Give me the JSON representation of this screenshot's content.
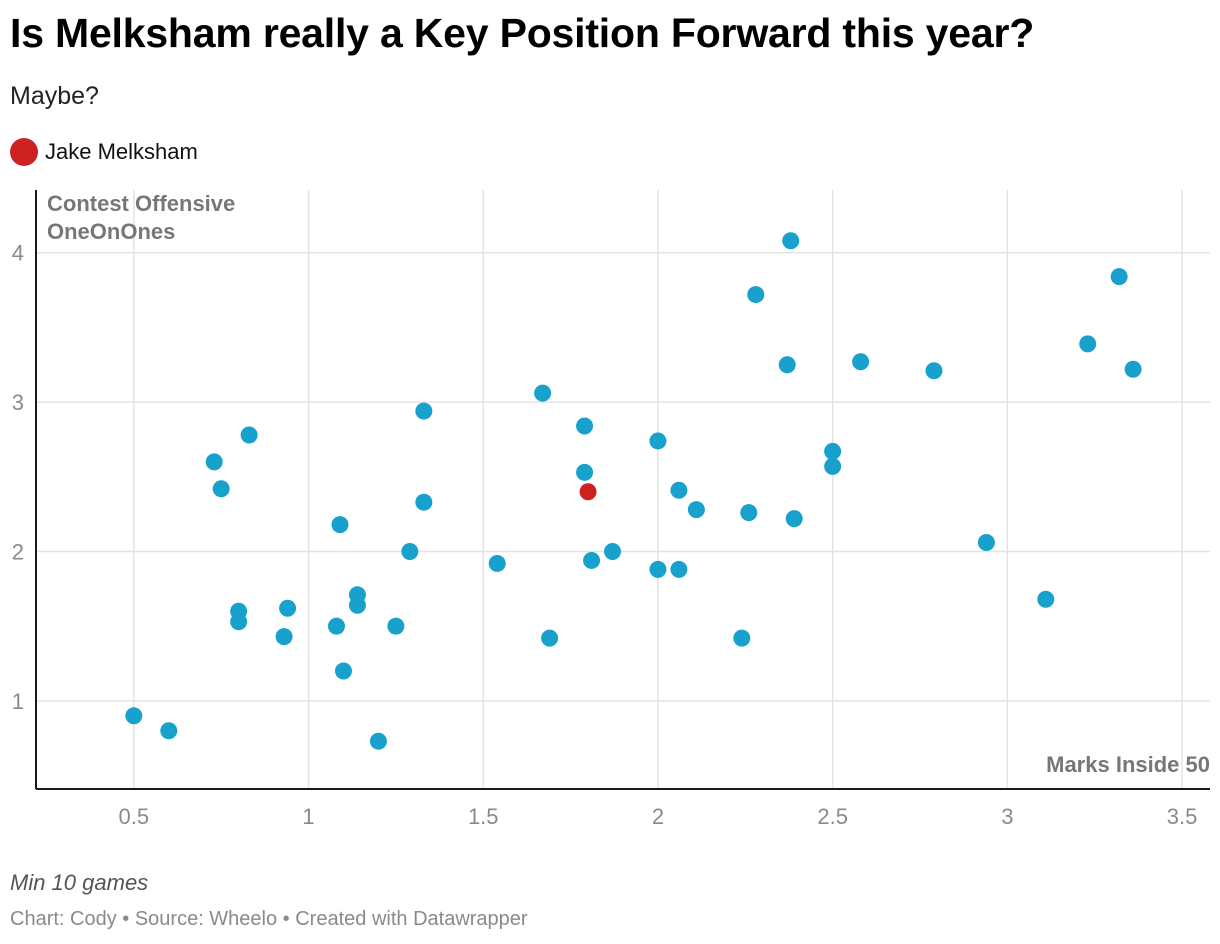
{
  "header": {
    "title": "Is Melksham really a Key Position Forward this year?",
    "subtitle": "Maybe?"
  },
  "legend": {
    "label": "Jake Melksham",
    "color": "#cc2222"
  },
  "footer": {
    "note": "Min 10 games",
    "byline": "Chart: Cody • Source: Wheelo • Created with Datawrapper"
  },
  "chart_data": {
    "type": "scatter",
    "title": "Is Melksham really a Key Position Forward this year?",
    "subtitle": "Maybe?",
    "xlabel": "Marks Inside 50",
    "ylabel_lines": [
      "Contest Offensive",
      "OneOnOnes"
    ],
    "xlim": [
      0.22,
      3.58
    ],
    "ylim": [
      0.41,
      4.42
    ],
    "xticks": [
      0.5,
      1,
      1.5,
      2,
      2.5,
      3,
      3.5
    ],
    "xtick_labels": [
      "0.5",
      "1",
      "1.5",
      "2",
      "2.5",
      "3",
      "3.5"
    ],
    "yticks": [
      1,
      2,
      3,
      4
    ],
    "ytick_labels": [
      "1",
      "2",
      "3",
      "4"
    ],
    "grid": true,
    "colors": {
      "default": "#18a1cd",
      "highlight": "#cc2222",
      "grid": "#e3e3e3",
      "axis": "#1a1a1a",
      "tick": "#8a8a8a",
      "axis_title": "#777777"
    },
    "points": [
      {
        "x": 0.5,
        "y": 0.9
      },
      {
        "x": 0.6,
        "y": 0.8
      },
      {
        "x": 0.73,
        "y": 2.6
      },
      {
        "x": 0.75,
        "y": 2.42
      },
      {
        "x": 0.8,
        "y": 1.6
      },
      {
        "x": 0.8,
        "y": 1.53
      },
      {
        "x": 0.83,
        "y": 2.78
      },
      {
        "x": 0.93,
        "y": 1.43
      },
      {
        "x": 0.94,
        "y": 1.62
      },
      {
        "x": 1.08,
        "y": 1.5
      },
      {
        "x": 1.09,
        "y": 2.18
      },
      {
        "x": 1.1,
        "y": 1.2
      },
      {
        "x": 1.14,
        "y": 1.71
      },
      {
        "x": 1.14,
        "y": 1.64
      },
      {
        "x": 1.2,
        "y": 0.73
      },
      {
        "x": 1.25,
        "y": 1.5
      },
      {
        "x": 1.29,
        "y": 2.0
      },
      {
        "x": 1.33,
        "y": 2.94
      },
      {
        "x": 1.33,
        "y": 2.33
      },
      {
        "x": 1.54,
        "y": 1.92
      },
      {
        "x": 1.67,
        "y": 3.06
      },
      {
        "x": 1.69,
        "y": 1.42
      },
      {
        "x": 1.79,
        "y": 2.84
      },
      {
        "x": 1.79,
        "y": 2.53
      },
      {
        "x": 1.81,
        "y": 1.94
      },
      {
        "x": 1.87,
        "y": 2.0
      },
      {
        "x": 2.0,
        "y": 2.74
      },
      {
        "x": 2.0,
        "y": 1.88
      },
      {
        "x": 2.06,
        "y": 2.41
      },
      {
        "x": 2.06,
        "y": 1.88
      },
      {
        "x": 2.11,
        "y": 2.28
      },
      {
        "x": 2.24,
        "y": 1.42
      },
      {
        "x": 2.26,
        "y": 2.26
      },
      {
        "x": 2.28,
        "y": 3.72
      },
      {
        "x": 2.37,
        "y": 3.25
      },
      {
        "x": 2.38,
        "y": 4.08
      },
      {
        "x": 2.39,
        "y": 2.22
      },
      {
        "x": 2.5,
        "y": 2.67
      },
      {
        "x": 2.5,
        "y": 2.57
      },
      {
        "x": 2.58,
        "y": 3.27
      },
      {
        "x": 2.79,
        "y": 3.21
      },
      {
        "x": 2.94,
        "y": 2.06
      },
      {
        "x": 3.11,
        "y": 1.68
      },
      {
        "x": 3.23,
        "y": 3.39
      },
      {
        "x": 3.32,
        "y": 3.84
      },
      {
        "x": 3.36,
        "y": 3.22
      },
      {
        "x": 1.8,
        "y": 2.4,
        "label": "Jake Melksham",
        "highlight": true
      }
    ]
  }
}
